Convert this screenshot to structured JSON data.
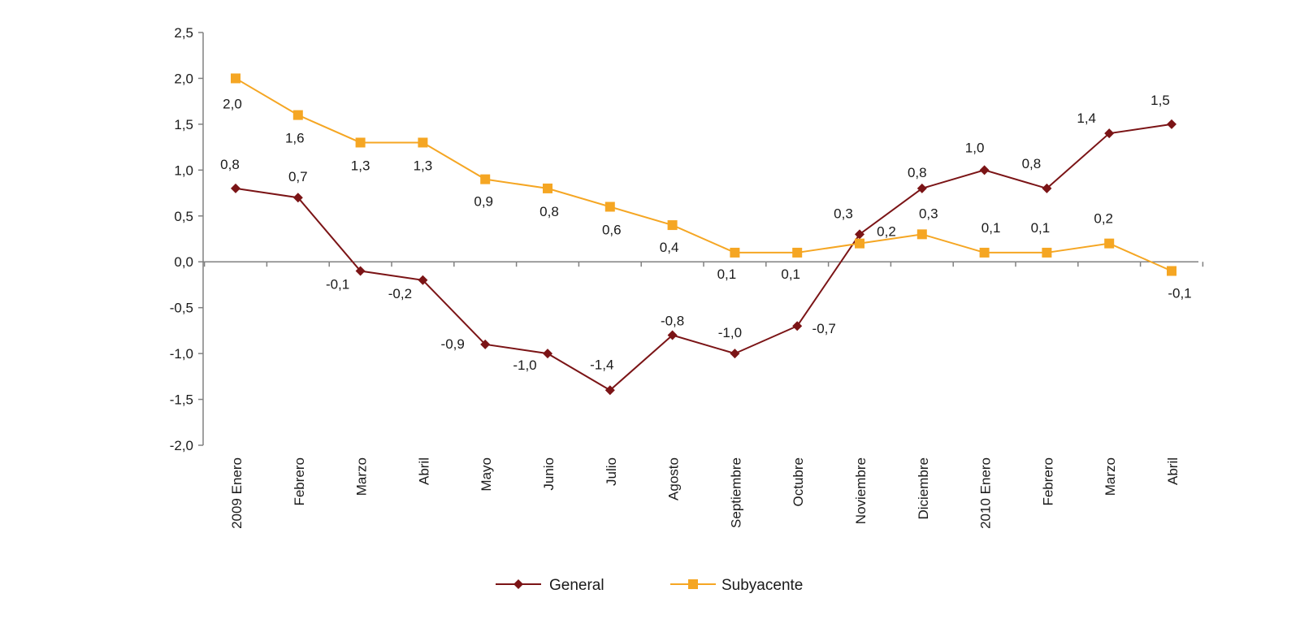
{
  "chart_data": {
    "type": "line",
    "title": "",
    "xlabel": "",
    "ylabel": "",
    "categories": [
      "2009 Enero",
      "Febrero",
      "Marzo",
      "Abril",
      "Mayo",
      "Junio",
      "Julio",
      "Agosto",
      "Septiembre",
      "Octubre",
      "Noviembre",
      "Diciembre",
      "2010 Enero",
      "Febrero",
      "Marzo",
      "Abril"
    ],
    "ylim": [
      -2.0,
      2.5
    ],
    "ytick_step": 0.5,
    "yticks": [
      "2,5",
      "2,0",
      "1,5",
      "1,0",
      "0,5",
      "0,0",
      "-0,5",
      "-1,0",
      "-1,5",
      "-2,0"
    ],
    "grid": false,
    "legend_position": "bottom",
    "series": [
      {
        "name": "General",
        "color": "#7b1416",
        "marker": "diamond",
        "values": [
          0.8,
          0.7,
          -0.1,
          -0.2,
          -0.9,
          -1.0,
          -1.4,
          -0.8,
          -1.0,
          -0.7,
          0.3,
          0.8,
          1.0,
          0.8,
          1.4,
          1.5
        ],
        "labels": [
          "0,8",
          "0,7",
          "-0,1",
          "-0,2",
          "-0,9",
          "-1,0",
          "-1,4",
          "-0,8",
          "-1,0",
          "-0,7",
          "0,3",
          "0,8",
          "1,0",
          "0,8",
          "1,4",
          "1,5"
        ]
      },
      {
        "name": "Subyacente",
        "color": "#f5a623",
        "marker": "square",
        "values": [
          2.0,
          1.6,
          1.3,
          1.3,
          0.9,
          0.8,
          0.6,
          0.4,
          0.1,
          0.1,
          0.2,
          0.3,
          0.1,
          0.1,
          0.2,
          -0.1
        ],
        "labels": [
          "2,0",
          "1,6",
          "1,3",
          "1,3",
          "0,9",
          "0,8",
          "0,6",
          "0,4",
          "0,1",
          "0,1",
          "0,2",
          "0,3",
          "0,1",
          "0,1",
          "0,2",
          "-0,1"
        ]
      }
    ]
  }
}
